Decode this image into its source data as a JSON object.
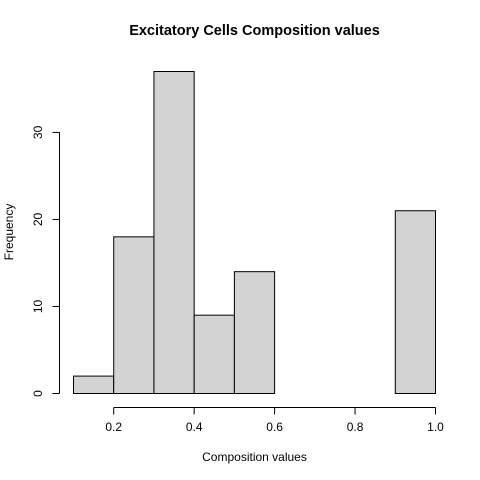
{
  "chart_data": {
    "type": "bar",
    "title": "Excitatory Cells Composition values",
    "xlabel": "Composition values",
    "ylabel": "Frequency",
    "bins": [
      {
        "start": 0.1,
        "end": 0.2,
        "count": 2
      },
      {
        "start": 0.2,
        "end": 0.3,
        "count": 18
      },
      {
        "start": 0.3,
        "end": 0.4,
        "count": 37
      },
      {
        "start": 0.4,
        "end": 0.5,
        "count": 9
      },
      {
        "start": 0.5,
        "end": 0.6,
        "count": 14
      },
      {
        "start": 0.6,
        "end": 0.7,
        "count": 0
      },
      {
        "start": 0.7,
        "end": 0.8,
        "count": 0
      },
      {
        "start": 0.8,
        "end": 0.9,
        "count": 0
      },
      {
        "start": 0.9,
        "end": 1.0,
        "count": 21
      }
    ],
    "xlim": [
      0.1,
      1.0
    ],
    "ylim": [
      0,
      37
    ],
    "x_ticks": [
      0.2,
      0.4,
      0.6,
      0.8,
      1.0
    ],
    "x_tick_labels": [
      "0.2",
      "0.4",
      "0.6",
      "0.8",
      "1.0"
    ],
    "y_ticks": [
      0,
      10,
      20,
      30
    ],
    "y_tick_labels": [
      "0",
      "10",
      "20",
      "30"
    ],
    "bar_color": "#d3d3d3",
    "grid": false,
    "legend": "none"
  }
}
